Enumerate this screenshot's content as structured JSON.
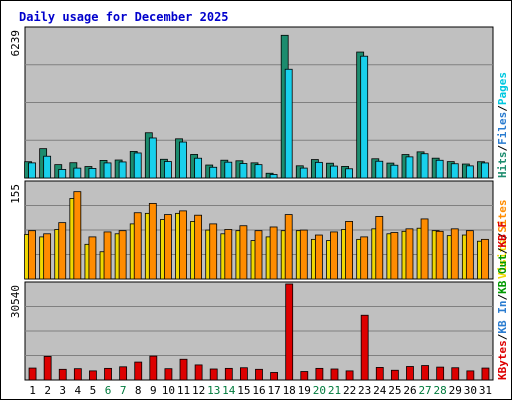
{
  "chart_data": {
    "type": "bar",
    "title": "Daily usage for December 2025",
    "categories": [
      "1",
      "2",
      "3",
      "4",
      "5",
      "6",
      "7",
      "8",
      "9",
      "10",
      "11",
      "12",
      "13",
      "14",
      "15",
      "16",
      "17",
      "18",
      "19",
      "20",
      "21",
      "22",
      "23",
      "24",
      "25",
      "26",
      "27",
      "28",
      "29",
      "30",
      "31"
    ],
    "weekend_days": [
      6,
      7,
      13,
      14,
      20,
      21,
      27,
      28
    ],
    "colors": {
      "title": "#0000cc",
      "hits": "#1c8c6e",
      "files": "#18d0ec",
      "pages": "#00c8e0",
      "visits": "#f0d800",
      "sites": "#ff8c00",
      "kb_in": "#2a7cd0",
      "kb_out": "#009900",
      "kb_f": "#dd0000",
      "weekday_label": "#000000",
      "weekend_label": "#007a3c"
    },
    "panels": [
      {
        "id": "hits-files",
        "ymax_label": "6239",
        "ylim": [
          0,
          6239
        ],
        "legend": [
          {
            "text": "Hits",
            "color": "#1c8c6e"
          },
          {
            "text": "/",
            "color": "#000000"
          },
          {
            "text": "Files",
            "color": "#2a7cd0"
          },
          {
            "text": "/",
            "color": "#000000"
          },
          {
            "text": "Pages",
            "color": "#00c8e0"
          }
        ],
        "series": [
          {
            "name": "Hits",
            "color": "#1c8c6e",
            "values": [
              682,
              1229,
              560,
              640,
              480,
              737,
              753,
              1112,
              1895,
              784,
              1641,
              986,
              543,
              745,
              721,
              635,
              199,
              5975,
              511,
              773,
              619,
              485,
              5274,
              805,
              624,
              983,
              1095,
              830,
              686,
              585,
              682
            ]
          },
          {
            "name": "Files",
            "color": "#18d0ec",
            "values": [
              633,
              912,
              358,
              414,
              401,
              632,
              673,
              1048,
              1676,
              690,
              1506,
              828,
              450,
              662,
              607,
              559,
              148,
              4553,
              415,
              655,
              499,
              386,
              5100,
              702,
              535,
              885,
              1016,
              742,
              597,
              508,
              631
            ]
          }
        ]
      },
      {
        "id": "visits-sites",
        "ymax_label": "155",
        "ylim": [
          0,
          155
        ],
        "legend": [
          {
            "text": "Visits",
            "color": "#f0d800"
          },
          {
            "text": "/",
            "color": "#000000"
          },
          {
            "text": "Sites",
            "color": "#ff8c00"
          }
        ],
        "series": [
          {
            "name": "Visits",
            "color": "#f0d800",
            "values": [
              72,
              68,
              80,
              130,
              56,
              44,
              73,
              89,
              106,
              96,
              106,
              93,
              79,
              73,
              78,
              62,
              68,
              78,
              78,
              64,
              62,
              80,
              64,
              81,
              73,
              77,
              82,
              78,
              70,
              71,
              61
            ]
          },
          {
            "name": "Sites",
            "color": "#ff8c00",
            "values": [
              78,
              73,
              91,
              141,
              68,
              76,
              78,
              107,
              122,
              104,
              110,
              103,
              89,
              80,
              86,
              78,
              84,
              104,
              79,
              71,
              76,
              93,
              68,
              101,
              75,
              81,
              97,
              77,
              81,
              78,
              64
            ]
          }
        ]
      },
      {
        "id": "kbytes",
        "ymax_label": "30540",
        "ylim": [
          0,
          30540
        ],
        "legend": [
          {
            "text": "KBytes",
            "color": "#dd0000"
          },
          {
            "text": "/",
            "color": "#000000"
          },
          {
            "text": "KB In",
            "color": "#2a7cd0"
          },
          {
            "text": "/",
            "color": "#000000"
          },
          {
            "text": "KB Out",
            "color": "#009900"
          },
          {
            "text": "/",
            "color": "#000000"
          },
          {
            "text": "KB F",
            "color": "#dd0000"
          }
        ],
        "series": [
          {
            "name": "KBytes",
            "color": "#dd0000",
            "values": [
              3800,
              7500,
              3400,
              3600,
              2900,
              3700,
              4200,
              5700,
              7600,
              3600,
              6600,
              4800,
              3500,
              3700,
              3900,
              3400,
              2400,
              30540,
              2700,
              3700,
              3500,
              2900,
              20600,
              4000,
              3100,
              4300,
              4600,
              4100,
              3900,
              2900,
              3800
            ]
          }
        ]
      }
    ]
  }
}
